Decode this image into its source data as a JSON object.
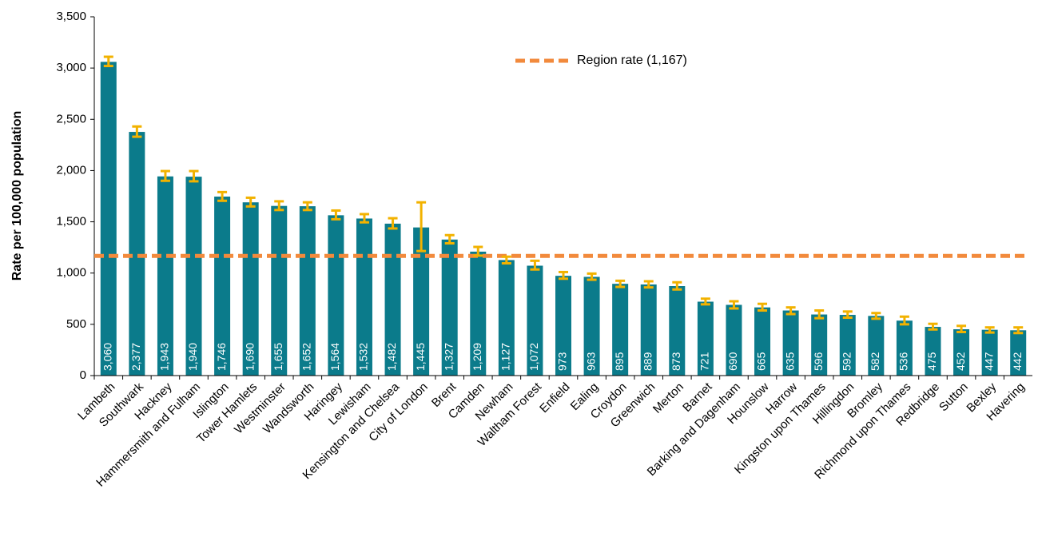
{
  "chart_data": {
    "type": "bar",
    "y_axis_label": "Rate per 100,000 population",
    "categories": [
      "Lambeth",
      "Southwark",
      "Hackney",
      "Hammersmith and Fulham",
      "Islington",
      "Tower Hamlets",
      "Westminster",
      "Wandsworth",
      "Haringey",
      "Lewisham",
      "Kensington and Chelsea",
      "City of London",
      "Brent",
      "Camden",
      "Newham",
      "Waltham Forest",
      "Enfield",
      "Ealing",
      "Croydon",
      "Greenwich",
      "Merton",
      "Barnet",
      "Barking and Dagenham",
      "Hounslow",
      "Harrow",
      "Kingston upon Thames",
      "Hillingdon",
      "Bromley",
      "Richmond upon Thames",
      "Redbridge",
      "Sutton",
      "Bexley",
      "Havering"
    ],
    "values": [
      3060,
      2377,
      1943,
      1940,
      1746,
      1690,
      1655,
      1652,
      1564,
      1532,
      1482,
      1445,
      1327,
      1209,
      1127,
      1072,
      973,
      963,
      895,
      889,
      873,
      721,
      690,
      665,
      635,
      596,
      592,
      582,
      536,
      475,
      452,
      447,
      442
    ],
    "value_labels": [
      "3,060",
      "2,377",
      "1,943",
      "1,940",
      "1,746",
      "1,690",
      "1,655",
      "1,652",
      "1,564",
      "1,532",
      "1,482",
      "1,445",
      "1,327",
      "1,209",
      "1,127",
      "1,072",
      "973",
      "963",
      "895",
      "889",
      "873",
      "721",
      "690",
      "665",
      "635",
      "596",
      "592",
      "582",
      "536",
      "475",
      "452",
      "447",
      "442"
    ],
    "ci_low": [
      3020,
      2330,
      1900,
      1895,
      1705,
      1650,
      1615,
      1615,
      1525,
      1495,
      1435,
      1215,
      1290,
      1170,
      1095,
      1035,
      945,
      935,
      865,
      860,
      840,
      695,
      655,
      635,
      600,
      560,
      565,
      555,
      500,
      450,
      425,
      420,
      415
    ],
    "ci_high": [
      3110,
      2430,
      1995,
      1995,
      1790,
      1735,
      1700,
      1690,
      1610,
      1575,
      1535,
      1690,
      1370,
      1255,
      1160,
      1120,
      1010,
      995,
      925,
      920,
      910,
      750,
      725,
      700,
      665,
      635,
      625,
      610,
      575,
      505,
      485,
      470,
      470
    ],
    "color": "#0b7b8b",
    "error_color": "#f2b200",
    "reference_line": {
      "name": "Region rate (1,167)",
      "value": 1167,
      "color": "#f28a3c"
    },
    "ylim": [
      0,
      3500
    ],
    "yticks": [
      0,
      500,
      {
        "value": 1000,
        "label": "1,000"
      },
      {
        "value": 1500,
        "label": "1,500"
      },
      {
        "value": 2000,
        "label": "2,000"
      },
      {
        "value": 2500,
        "label": "2,500"
      },
      {
        "value": 3000,
        "label": "3,000"
      },
      {
        "value": 3500,
        "label": "3,500"
      }
    ],
    "legend_position": "top-center"
  }
}
